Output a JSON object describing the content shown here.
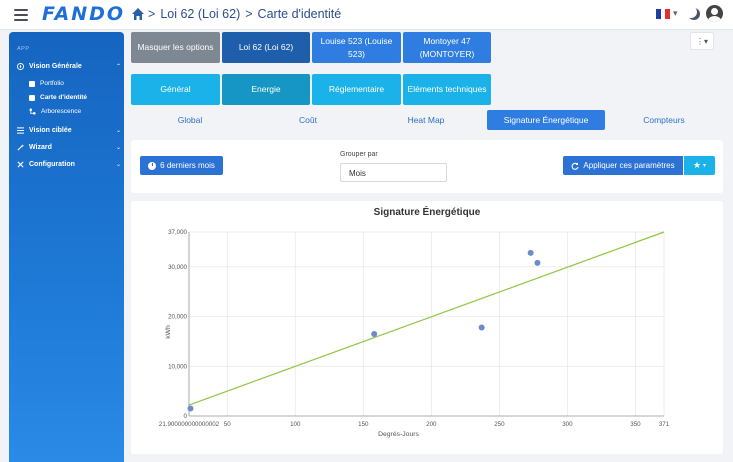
{
  "header": {
    "logo": "FANDO",
    "breadcrumb": [
      "Loi 62 (Loi 62)",
      "Carte d'identité"
    ],
    "sep": ">"
  },
  "sidebar": {
    "section": "APP",
    "items": [
      {
        "label": "Vision Générale",
        "chevron": "⌃",
        "subitems": [
          "Portfolio",
          "Carte d'identité",
          "Arborescence"
        ]
      },
      {
        "label": "Vision ciblée",
        "chevron": "⌄"
      },
      {
        "label": "Wizard",
        "chevron": "⌄"
      },
      {
        "label": "Configuration",
        "chevron": "⌄"
      }
    ]
  },
  "tabs_row1": [
    "Masquer les options",
    "Loi 62 (Loi 62)",
    "Louise 523 (Louise 523)",
    "Montoyer 47 (MONTOYER)"
  ],
  "tabs_row2": [
    "Général",
    "Energie",
    "Réglementaire",
    "Eléments techniques"
  ],
  "subtabs": [
    "Global",
    "Coût",
    "Heat Map",
    "Signature Énergétique",
    "Compteurs"
  ],
  "controls": {
    "period_button": "6 derniers mois",
    "group_label": "Grouper par",
    "group_value": "Mois",
    "apply_button": "Appliquer ces paramètres"
  },
  "colors": {
    "accent": "#2b72d4",
    "cyan": "#1ab2e8",
    "line": "#8dc63f",
    "points": "#6b8cc7"
  },
  "chart_data": {
    "type": "scatter",
    "title": "Signature Énergétique",
    "xlabel": "Degrés-Jours",
    "ylabel": "kWh",
    "xlim": [
      21.9,
      371
    ],
    "ylim": [
      0,
      37000
    ],
    "x_ticks": [
      "21.900000000000002",
      "50",
      "100",
      "150",
      "200",
      "250",
      "300",
      "350",
      "371"
    ],
    "x_tick_values": [
      21.9,
      50,
      100,
      150,
      200,
      250,
      300,
      350,
      371
    ],
    "y_ticks": [
      "0",
      "10,000",
      "20,000",
      "30,000",
      "37,000"
    ],
    "y_tick_values": [
      0,
      10000,
      20000,
      30000,
      37000
    ],
    "points": [
      {
        "x": 23,
        "y": 1500
      },
      {
        "x": 158,
        "y": 16500
      },
      {
        "x": 237,
        "y": 17800
      },
      {
        "x": 273,
        "y": 32800
      },
      {
        "x": 278,
        "y": 30800
      }
    ],
    "trendline": [
      {
        "x": 21.9,
        "y": 2200
      },
      {
        "x": 371,
        "y": 37000
      }
    ],
    "grid": true
  }
}
